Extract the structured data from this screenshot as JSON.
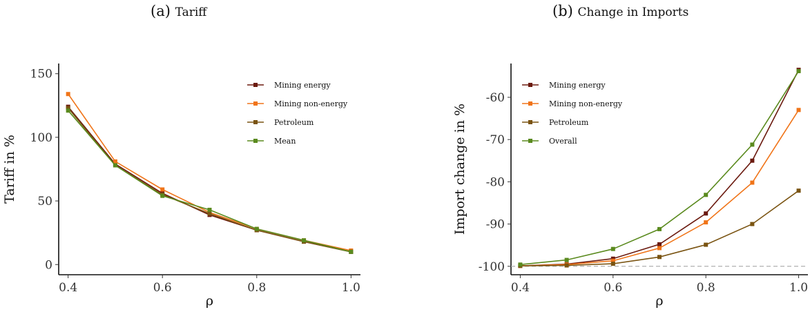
{
  "titles": {
    "a_prefix": "(a) ",
    "a_text": "Tariff",
    "b_prefix": "(b) ",
    "b_text": "Change in Imports"
  },
  "colors": {
    "mining_energy": "#6b1a0f",
    "mining_non_energy": "#f07418",
    "petroleum": "#7a5412",
    "mean_overall": "#5a8a1e",
    "reference_line": "#b0b0b0"
  },
  "chart_data": [
    {
      "type": "line",
      "xlabel": "ρ",
      "ylabel": "Tariff in %",
      "x": [
        0.4,
        0.5,
        0.6,
        0.7,
        0.8,
        0.9,
        1.0
      ],
      "xticks": [
        "0.4",
        "0.6",
        "0.8",
        "1.0"
      ],
      "xtick_values": [
        0.4,
        0.6,
        0.8,
        1.0
      ],
      "yticks": [
        "0",
        "50",
        "100",
        "150"
      ],
      "ytick_values": [
        0,
        50,
        100,
        150
      ],
      "xlim": [
        0.38,
        1.02
      ],
      "ylim": [
        -8,
        158
      ],
      "legend_position": "top-right",
      "series": [
        {
          "name": "Mining energy",
          "color_key": "mining_energy",
          "values": [
            124,
            79,
            56,
            39,
            27,
            18,
            10
          ]
        },
        {
          "name": "Mining non-energy",
          "color_key": "mining_non_energy",
          "values": [
            134,
            81,
            59,
            41,
            28,
            19,
            11
          ]
        },
        {
          "name": "Petroleum",
          "color_key": "petroleum",
          "values": [
            123,
            78,
            55,
            40,
            27,
            18,
            10
          ]
        },
        {
          "name": "Mean",
          "color_key": "mean_overall",
          "values": [
            121,
            78,
            54,
            43,
            28,
            19,
            10
          ]
        }
      ]
    },
    {
      "type": "line",
      "xlabel": "ρ",
      "ylabel": "Import change in %",
      "x": [
        0.4,
        0.5,
        0.6,
        0.7,
        0.8,
        0.9,
        1.0
      ],
      "xticks": [
        "0.4",
        "0.6",
        "0.8",
        "1.0"
      ],
      "xtick_values": [
        0.4,
        0.6,
        0.8,
        1.0
      ],
      "yticks": [
        "-100",
        "-90",
        "-80",
        "-70",
        "-60"
      ],
      "ytick_values": [
        -100,
        -90,
        -80,
        -70,
        -60
      ],
      "xlim": [
        0.38,
        1.02
      ],
      "ylim": [
        -102,
        -52
      ],
      "reference_line": -100,
      "legend_position": "top-left",
      "series": [
        {
          "name": "Mining energy",
          "color_key": "mining_energy",
          "values": [
            -99.9,
            -99.5,
            -98.2,
            -94.8,
            -87.5,
            -75,
            -53.5
          ]
        },
        {
          "name": "Mining non-energy",
          "color_key": "mining_non_energy",
          "values": [
            -99.9,
            -99.6,
            -98.7,
            -95.7,
            -89.6,
            -80.2,
            -63
          ]
        },
        {
          "name": "Petroleum",
          "color_key": "petroleum",
          "values": [
            -99.9,
            -99.8,
            -99.4,
            -97.8,
            -94.9,
            -90,
            -82.1
          ]
        },
        {
          "name": "Overall",
          "color_key": "mean_overall",
          "values": [
            -99.6,
            -98.5,
            -95.9,
            -91.2,
            -83.1,
            -71.2,
            -53.8
          ]
        }
      ]
    }
  ]
}
